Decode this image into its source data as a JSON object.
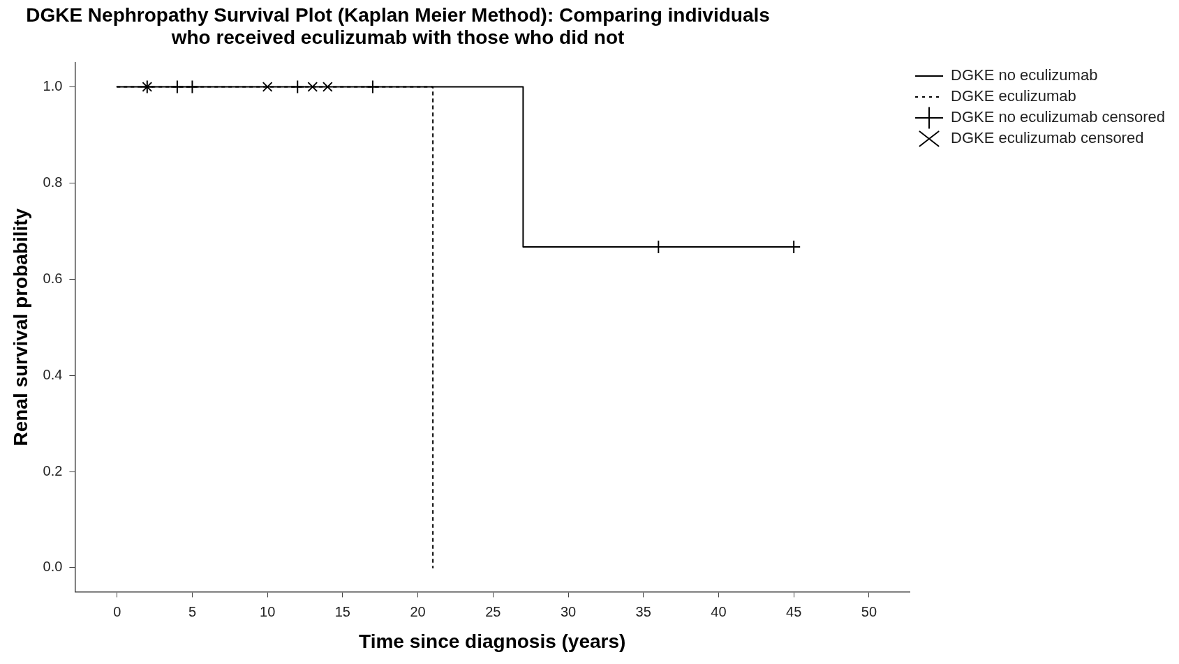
{
  "chart_data": {
    "type": "step",
    "title": "DGKE Nephropathy Survival Plot (Kaplan Meier Method): Comparing individuals who received eculizumab with those who did not",
    "xlabel": "Time since diagnosis (years)",
    "ylabel": "Renal survival probability",
    "xlim": [
      -2.8,
      52.7
    ],
    "xticks": [
      0,
      5,
      10,
      15,
      20,
      25,
      30,
      35,
      40,
      45,
      50
    ],
    "ylim": [
      -0.05,
      1.05
    ],
    "yticks": [
      {
        "value": 0,
        "label": "0.0"
      },
      0.2,
      0.4,
      0.6,
      0.8,
      {
        "value": 1,
        "label": "1.0"
      }
    ],
    "grid": false,
    "legend": "top right",
    "line_style": "solid",
    "series": [
      {
        "name": "DGKE no eculizumab",
        "color": "#000000",
        "x": [
          0,
          27,
          45
        ],
        "values": [
          1,
          0.667,
          0.667
        ]
      },
      {
        "name": "DGKE eculizumab",
        "color": "#000000",
        "x": [
          0,
          21
        ],
        "values": [
          1,
          0
        ],
        "line_style": "dotted"
      },
      {
        "name": "DGKE no eculizumab censored",
        "color": "#000000",
        "type": "scatter",
        "marker": "cross",
        "x": [
          2,
          4,
          5,
          12,
          17,
          36,
          45
        ],
        "values": [
          1,
          1,
          1,
          1,
          1,
          0.667,
          0.667
        ]
      },
      {
        "name": "DGKE eculizumab censored",
        "color": "#000000",
        "type": "scatter",
        "marker": "x",
        "x": [
          2,
          10,
          13,
          14
        ],
        "values": [
          1,
          1,
          1,
          1
        ]
      }
    ]
  }
}
